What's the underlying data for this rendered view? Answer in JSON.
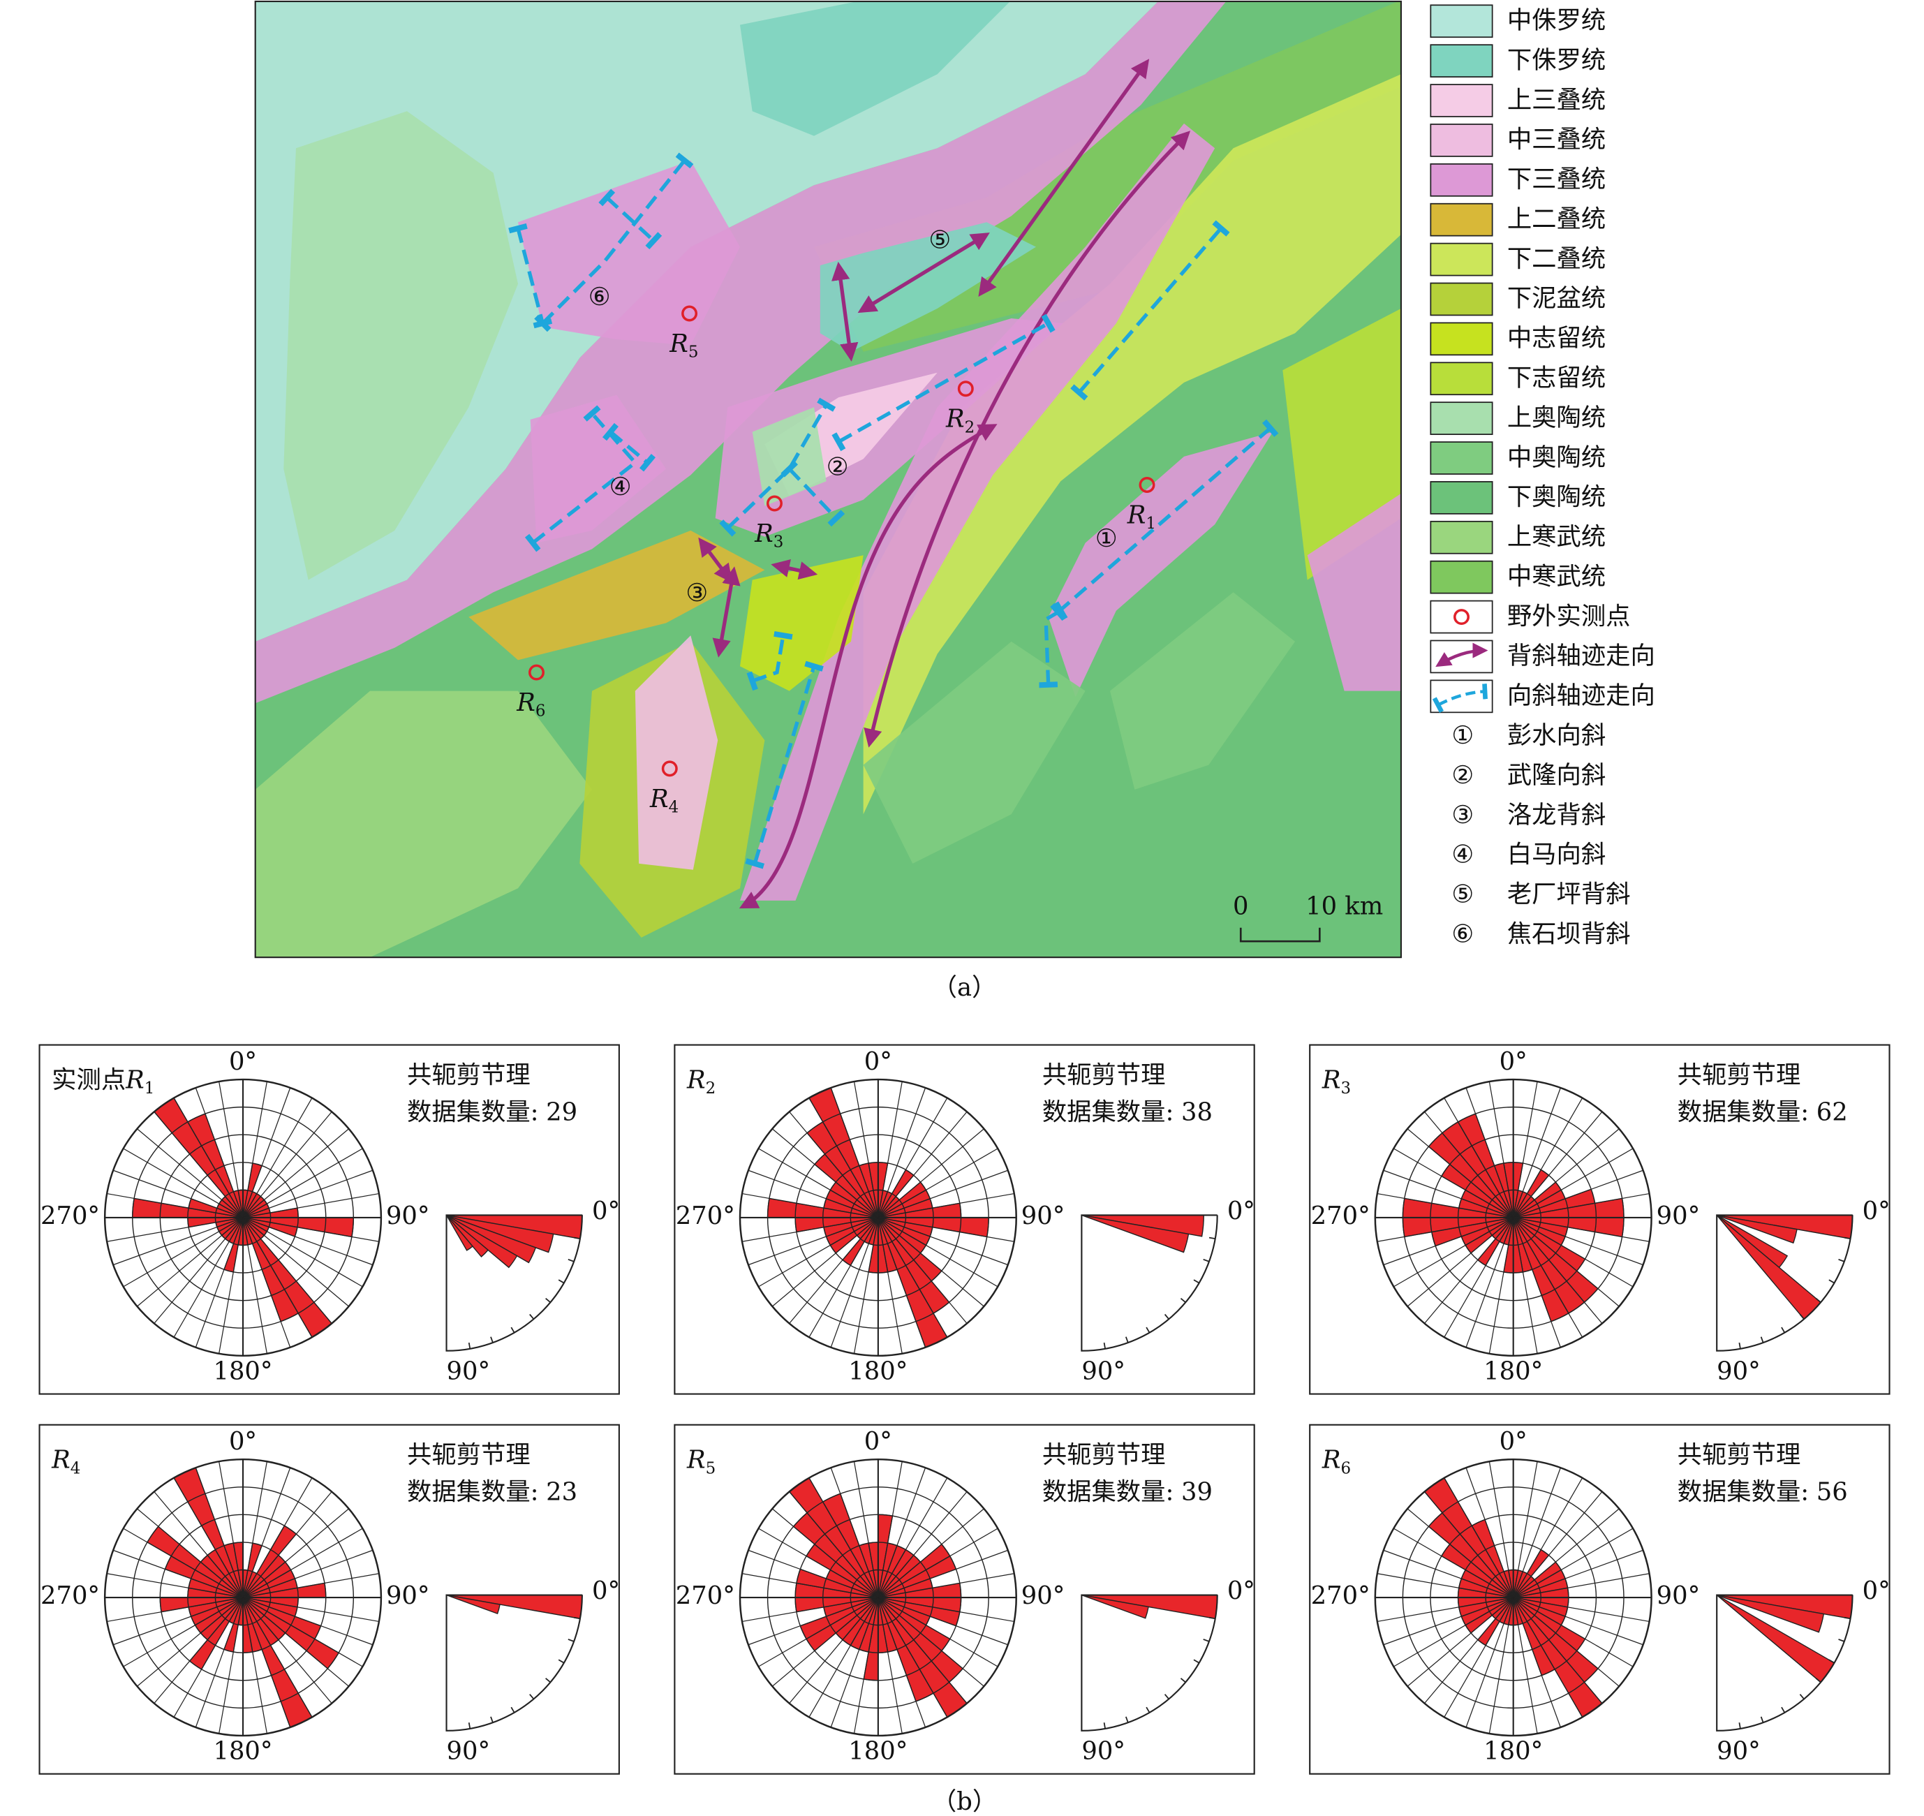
{
  "map": {
    "caption": "（a）",
    "legend": [
      {
        "label": "中侏罗统",
        "color": "#b3e6da"
      },
      {
        "label": "下侏罗统",
        "color": "#7fd4bf"
      },
      {
        "label": "上三叠统",
        "color": "#f5cce6"
      },
      {
        "label": "中三叠统",
        "color": "#eebde0"
      },
      {
        "label": "下三叠统",
        "color": "#dd99d6"
      },
      {
        "label": "上二叠统",
        "color": "#d8b838"
      },
      {
        "label": "下二叠统",
        "color": "#cce65a"
      },
      {
        "label": "下泥盆统",
        "color": "#b5d13a"
      },
      {
        "label": "中志留统",
        "color": "#c6e21f"
      },
      {
        "label": "下志留统",
        "color": "#b8de3a"
      },
      {
        "label": "上奥陶统",
        "color": "#a8dfae"
      },
      {
        "label": "中奥陶统",
        "color": "#7fcc80"
      },
      {
        "label": "下奥陶统",
        "color": "#6cc27a"
      },
      {
        "label": "上寒武统",
        "color": "#9ad67e"
      },
      {
        "label": "中寒武统",
        "color": "#7fc85e"
      }
    ],
    "symbols": [
      "野外实测点",
      "背斜轴迹走向",
      "向斜轴迹走向"
    ],
    "folds": [
      {
        "num": "①",
        "name": "彭水向斜"
      },
      {
        "num": "②",
        "name": "武隆向斜"
      },
      {
        "num": "③",
        "name": "洛龙背斜"
      },
      {
        "num": "④",
        "name": "白马向斜"
      },
      {
        "num": "⑤",
        "name": "老厂坪背斜"
      },
      {
        "num": "⑥",
        "name": "焦石坝背斜"
      }
    ],
    "points": [
      {
        "letter": "R",
        "sub": "1"
      },
      {
        "letter": "R",
        "sub": "2"
      },
      {
        "letter": "R",
        "sub": "3"
      },
      {
        "letter": "R",
        "sub": "4"
      },
      {
        "letter": "R",
        "sub": "5"
      },
      {
        "letter": "R",
        "sub": "6"
      }
    ],
    "scale": {
      "zero": "0",
      "ten": "10 km"
    }
  },
  "roses": {
    "caption": "（b）",
    "direction_labels": [
      "0°",
      "90°",
      "180°",
      "270°"
    ],
    "dip_labels": [
      "0°",
      "90°"
    ],
    "rlim": [
      0,
      5
    ],
    "rticks": [
      1,
      2,
      3,
      4,
      5
    ],
    "panels": [
      {
        "label": "实测点",
        "letter": "R",
        "sub": "1",
        "title": "共轭剪节理",
        "count_label": "数据集数量:",
        "count": 29,
        "petals": [
          1,
          2,
          1,
          1,
          1,
          1,
          1,
          1,
          2,
          4,
          2,
          1,
          1,
          1,
          5,
          4,
          1,
          1
        ],
        "dips": [
          5,
          4,
          3.5,
          3,
          2,
          1.5,
          0,
          0,
          0
        ]
      },
      {
        "letter": "R",
        "sub": "2",
        "title": "共轭剪节理",
        "count_label": "数据集数量:",
        "count": 38,
        "petals": [
          2,
          1,
          1,
          2,
          1,
          2,
          2,
          2,
          3,
          4,
          2,
          2,
          2,
          3,
          4,
          5,
          2,
          2
        ],
        "dips": [
          4.5,
          4,
          0,
          0,
          0,
          0,
          0,
          0,
          0
        ]
      },
      {
        "letter": "R",
        "sub": "3",
        "title": "共轭剪节理",
        "count_label": "数据集数量:",
        "count": 62,
        "petals": [
          2,
          1,
          1,
          2,
          1,
          2,
          2,
          3,
          4,
          4,
          2,
          2,
          3,
          4,
          4,
          4,
          2,
          2
        ],
        "dips": [
          5,
          3,
          0,
          3,
          5,
          0,
          0,
          0,
          0
        ]
      },
      {
        "letter": "R",
        "sub": "4",
        "title": "共轭剪节理",
        "count_label": "数据集数量:",
        "count": 23,
        "petals": [
          1,
          2,
          1,
          3,
          2,
          2,
          2,
          2,
          3,
          2,
          2,
          3,
          4,
          2,
          2,
          5,
          2,
          2
        ],
        "dips": [
          5,
          2,
          0,
          0,
          0,
          0,
          0,
          0,
          0
        ]
      },
      {
        "letter": "R",
        "sub": "5",
        "title": "共轭剪节理",
        "count_label": "数据集数量:",
        "count": 39,
        "petals": [
          3,
          2,
          2,
          2,
          2,
          3,
          3,
          2,
          3,
          3,
          3,
          2,
          3,
          4,
          5,
          4,
          2,
          2
        ],
        "dips": [
          5,
          2.5,
          0,
          0,
          0,
          0,
          0,
          0,
          0
        ]
      },
      {
        "letter": "R",
        "sub": "6",
        "title": "共轭剪节理",
        "count_label": "数据集数量:",
        "count": 56,
        "petals": [
          1,
          1,
          1,
          2,
          1,
          2,
          2,
          2,
          2,
          2,
          2,
          2,
          3,
          4,
          5,
          3,
          1,
          1
        ],
        "dips": [
          5,
          4,
          0,
          5,
          0,
          0,
          0,
          0,
          0
        ]
      }
    ]
  }
}
